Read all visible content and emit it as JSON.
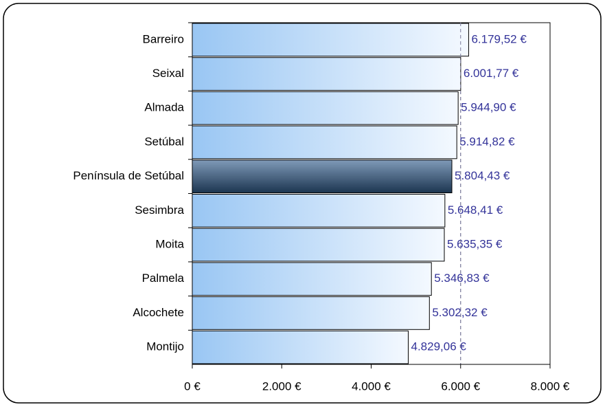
{
  "chart_data": {
    "type": "hbar",
    "categories": [
      "Barreiro",
      "Seixal",
      "Almada",
      "Setúbal",
      "Península de Setúbal",
      "Sesimbra",
      "Moita",
      "Palmela",
      "Alcochete",
      "Montijo"
    ],
    "values": [
      6179.52,
      6001.77,
      5944.9,
      5914.82,
      5804.43,
      5648.41,
      5635.35,
      5346.83,
      5302.32,
      4829.06
    ],
    "value_labels": [
      "6.179,52 €",
      "6.001,77 €",
      "5.944,90 €",
      "5.914,82 €",
      "5.804,43 €",
      "5.648,41 €",
      "5.635,35 €",
      "5.346,83 €",
      "5.302,32 €",
      "4.829,06 €"
    ],
    "colors": [
      "#99c6f3",
      "#99c6f3",
      "#99c6f3",
      "#99c6f3",
      "#1c3550",
      "#99c6f3",
      "#99c6f3",
      "#99c6f3",
      "#99c6f3",
      "#99c6f3"
    ],
    "xlim": [
      0,
      8000
    ],
    "xticks": [
      {
        "value": 0,
        "label": "0 €"
      },
      {
        "value": 2000,
        "label": "2.000 €"
      },
      {
        "value": 4000,
        "label": "4.000 €"
      },
      {
        "value": 6000,
        "label": "6.000 €"
      },
      {
        "value": 8000,
        "label": "8.000 €"
      }
    ],
    "reference_line": 6000,
    "label_color": "#333399"
  }
}
